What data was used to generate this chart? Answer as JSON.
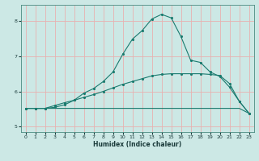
{
  "xlabel": "Humidex (Indice chaleur)",
  "bg_color": "#cce8e5",
  "grid_color": "#e8b0b0",
  "line_color": "#1a7a6e",
  "xlim": [
    -0.5,
    23.5
  ],
  "ylim": [
    4.85,
    8.45
  ],
  "xticks": [
    0,
    1,
    2,
    3,
    4,
    5,
    6,
    7,
    8,
    9,
    10,
    11,
    12,
    13,
    14,
    15,
    16,
    17,
    18,
    19,
    20,
    21,
    22,
    23
  ],
  "yticks": [
    5,
    6,
    7,
    8
  ],
  "x": [
    0,
    1,
    2,
    3,
    4,
    5,
    6,
    7,
    8,
    9,
    10,
    11,
    12,
    13,
    14,
    15,
    16,
    17,
    18,
    19,
    20,
    21,
    22,
    23
  ],
  "line1": [
    5.52,
    5.52,
    5.52,
    5.52,
    5.52,
    5.52,
    5.52,
    5.52,
    5.52,
    5.52,
    5.52,
    5.52,
    5.52,
    5.52,
    5.52,
    5.52,
    5.52,
    5.52,
    5.52,
    5.52,
    5.52,
    5.52,
    5.52,
    5.38
  ],
  "line2": [
    5.52,
    5.52,
    5.52,
    5.6,
    5.68,
    5.75,
    5.83,
    5.91,
    6.0,
    6.1,
    6.2,
    6.28,
    6.36,
    6.44,
    6.48,
    6.5,
    6.5,
    6.5,
    6.5,
    6.48,
    6.45,
    6.22,
    5.72,
    5.38
  ],
  "line3": [
    5.52,
    5.52,
    5.52,
    5.55,
    5.62,
    5.75,
    5.95,
    6.08,
    6.28,
    6.55,
    7.05,
    7.48,
    7.72,
    8.05,
    8.18,
    8.08,
    7.55,
    6.88,
    6.82,
    6.55,
    6.42,
    6.12,
    5.72,
    5.38
  ]
}
